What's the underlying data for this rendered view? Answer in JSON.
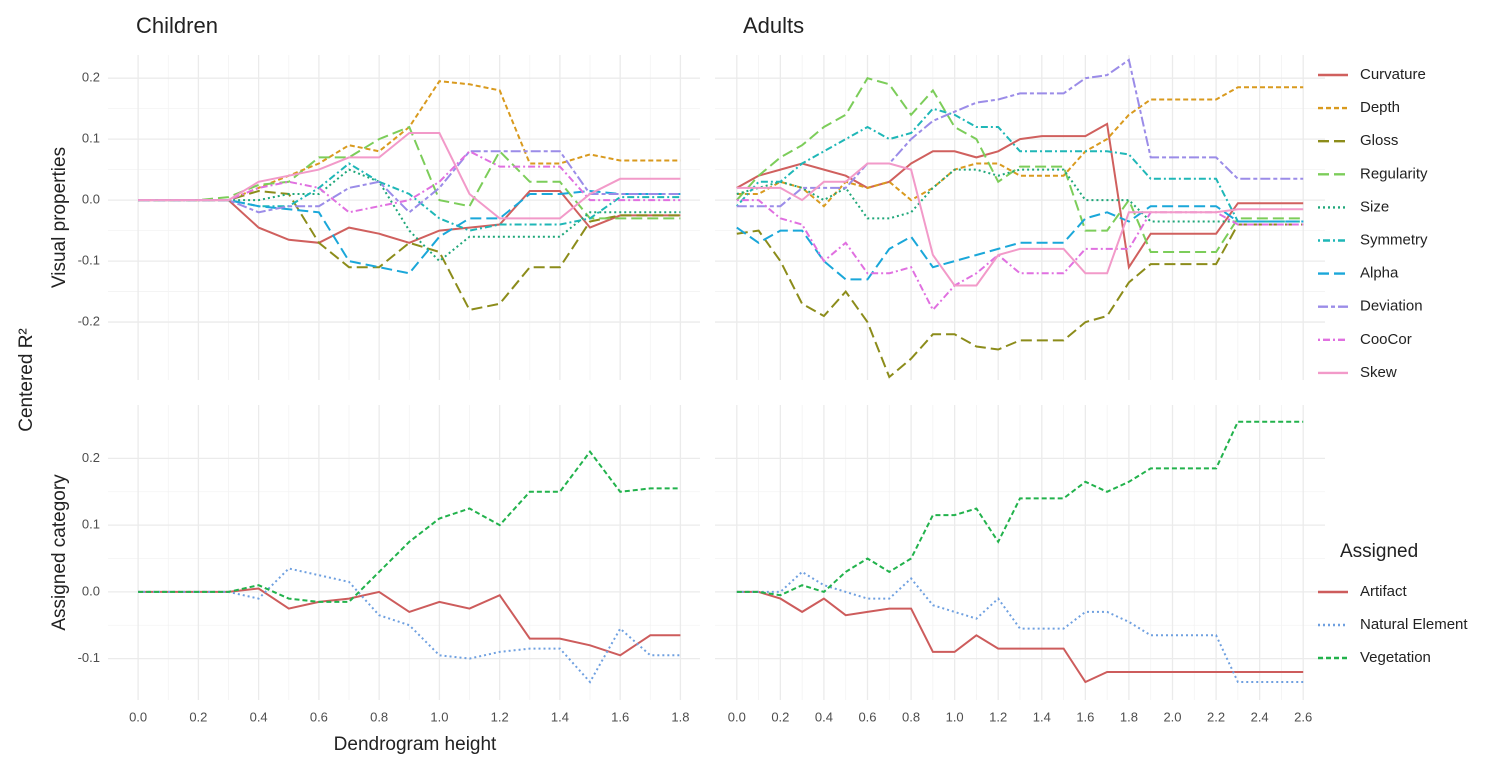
{
  "x_label": "Dendrogram height",
  "y_label": "Centered R²",
  "chart_data": [
    {
      "type": "line",
      "title": "Children",
      "ylabel": "Visual properties",
      "x": [
        0,
        0.1,
        0.2,
        0.3,
        0.4,
        0.5,
        0.6,
        0.7,
        0.8,
        0.9,
        1.0,
        1.1,
        1.2,
        1.3,
        1.4,
        1.5,
        1.6,
        1.7,
        1.8
      ],
      "xlim": [
        -0.1,
        1.865
      ],
      "ylim": [
        -0.295,
        0.238
      ],
      "xticks": [
        0,
        0.2,
        0.4,
        0.6,
        0.8,
        1,
        1.2,
        1.4,
        1.6,
        1.8
      ],
      "yticks": [
        {
          "value": 0.2,
          "label": "0.2"
        },
        {
          "value": 0.1,
          "label": "0.1"
        },
        {
          "value": 0,
          "label": "0.0"
        },
        {
          "value": -0.1,
          "label": "-0.1"
        },
        {
          "value": -0.2,
          "label": "-0.2"
        }
      ],
      "grid": true,
      "series": [
        {
          "color": "#d0605e",
          "linetype": "solid",
          "values": [
            0,
            0,
            0,
            0,
            -0.045,
            -0.065,
            -0.07,
            -0.045,
            -0.055,
            -0.07,
            -0.05,
            -0.045,
            -0.04,
            0.015,
            0.015,
            -0.045,
            -0.025,
            -0.025,
            -0.025
          ]
        },
        {
          "color": "#d99a1e",
          "linetype": "dashed",
          "values": [
            0,
            0,
            0,
            0,
            0.02,
            0.04,
            0.06,
            0.09,
            0.08,
            0.12,
            0.195,
            0.19,
            0.18,
            0.06,
            0.06,
            0.075,
            0.065,
            0.065,
            0.065
          ]
        },
        {
          "color": "#8c8c1a",
          "linetype": "longdash",
          "values": [
            0,
            0,
            0,
            0,
            0.015,
            0.01,
            -0.07,
            -0.11,
            -0.11,
            -0.07,
            -0.085,
            -0.18,
            -0.17,
            -0.11,
            -0.11,
            -0.035,
            -0.025,
            -0.025,
            -0.025
          ]
        },
        {
          "color": "#7ccd5a",
          "linetype": "longdash",
          "values": [
            0,
            0,
            0,
            0.005,
            0.025,
            0.03,
            0.07,
            0.07,
            0.1,
            0.12,
            0,
            -0.01,
            0.08,
            0.03,
            0.03,
            -0.03,
            -0.03,
            -0.03,
            -0.03
          ]
        },
        {
          "color": "#1fa77a",
          "linetype": "dotted",
          "values": [
            0,
            0,
            0,
            0,
            0,
            0.01,
            0.01,
            0.05,
            0.03,
            -0.05,
            -0.1,
            -0.06,
            -0.06,
            -0.06,
            -0.06,
            -0.02,
            -0.02,
            -0.02,
            -0.02
          ]
        },
        {
          "color": "#1fb7b7",
          "linetype": "dotdash",
          "values": [
            0,
            0,
            0,
            0,
            -0.01,
            -0.01,
            0.02,
            0.06,
            0.03,
            0.01,
            -0.03,
            -0.05,
            -0.04,
            -0.04,
            -0.04,
            -0.03,
            0.005,
            0.005,
            0.005
          ]
        },
        {
          "color": "#1aa7d9",
          "linetype": "longdash",
          "values": [
            0,
            0,
            0,
            0,
            -0.01,
            -0.015,
            -0.02,
            -0.1,
            -0.11,
            -0.12,
            -0.06,
            -0.03,
            -0.03,
            0.01,
            0.01,
            0.015,
            0.01,
            0.01,
            0.01
          ]
        },
        {
          "color": "#9b8ce8",
          "linetype": "twodash",
          "values": [
            0,
            0,
            0,
            0,
            -0.02,
            -0.01,
            -0.01,
            0.02,
            0.03,
            -0.02,
            0.02,
            0.08,
            0.08,
            0.08,
            0.08,
            0.01,
            0.01,
            0.01,
            0.01
          ]
        },
        {
          "color": "#e070e0",
          "linetype": "dotdash",
          "values": [
            0,
            0,
            0,
            0,
            0.02,
            0.03,
            0.02,
            -0.02,
            -0.01,
            0,
            0.03,
            0.08,
            0.055,
            0.055,
            0.055,
            0,
            0,
            0,
            0
          ]
        },
        {
          "color": "#f29ac9",
          "linetype": "solid",
          "values": [
            0,
            0,
            0,
            0,
            0.03,
            0.04,
            0.05,
            0.07,
            0.07,
            0.11,
            0.11,
            0.01,
            -0.03,
            -0.03,
            -0.03,
            0.01,
            0.035,
            0.035,
            0.035
          ]
        }
      ]
    },
    {
      "type": "line",
      "title": "Adults",
      "x": [
        0,
        0.1,
        0.2,
        0.3,
        0.4,
        0.5,
        0.6,
        0.7,
        0.8,
        0.9,
        1.0,
        1.1,
        1.2,
        1.3,
        1.4,
        1.5,
        1.6,
        1.7,
        1.8,
        1.9,
        2.0,
        2.1,
        2.2,
        2.3,
        2.4,
        2.5,
        2.6
      ],
      "xlim": [
        -0.1,
        2.7
      ],
      "ylim": [
        -0.295,
        0.238
      ],
      "xticks": [
        0,
        0.2,
        0.4,
        0.6,
        0.8,
        1,
        1.2,
        1.4,
        1.6,
        1.8,
        2,
        2.2,
        2.4,
        2.6
      ],
      "yticks": [
        0.2,
        0.1,
        0,
        -0.1,
        -0.2
      ],
      "grid": true,
      "series": [
        {
          "name": "Curvature",
          "color": "#d0605e",
          "linetype": "solid",
          "values": [
            0.02,
            0.04,
            0.05,
            0.06,
            0.05,
            0.04,
            0.02,
            0.03,
            0.06,
            0.08,
            0.08,
            0.07,
            0.08,
            0.1,
            0.105,
            0.105,
            0.105,
            0.125,
            -0.11,
            -0.055,
            -0.055,
            -0.055,
            -0.055,
            -0.005,
            -0.005,
            -0.005,
            -0.005
          ]
        },
        {
          "name": "Depth",
          "color": "#d99a1e",
          "linetype": "dashed",
          "values": [
            0.01,
            0.01,
            0.03,
            0.02,
            -0.01,
            0.03,
            0.02,
            0.03,
            0,
            0.02,
            0.05,
            0.06,
            0.06,
            0.04,
            0.04,
            0.04,
            0.08,
            0.1,
            0.14,
            0.165,
            0.165,
            0.165,
            0.165,
            0.185,
            0.185,
            0.185,
            0.185
          ]
        },
        {
          "name": "Gloss",
          "color": "#8c8c1a",
          "linetype": "longdash",
          "values": [
            -0.055,
            -0.05,
            -0.1,
            -0.17,
            -0.19,
            -0.15,
            -0.2,
            -0.29,
            -0.26,
            -0.22,
            -0.22,
            -0.24,
            -0.245,
            -0.23,
            -0.23,
            -0.23,
            -0.2,
            -0.19,
            -0.135,
            -0.105,
            -0.105,
            -0.105,
            -0.105,
            -0.04,
            -0.04,
            -0.04,
            -0.04
          ]
        },
        {
          "name": "Regularity",
          "color": "#7ccd5a",
          "linetype": "longdash",
          "values": [
            0,
            0.04,
            0.07,
            0.09,
            0.12,
            0.14,
            0.2,
            0.19,
            0.14,
            0.18,
            0.12,
            0.1,
            0.03,
            0.055,
            0.055,
            0.055,
            -0.05,
            -0.05,
            0,
            -0.085,
            -0.085,
            -0.085,
            -0.085,
            -0.03,
            -0.03,
            -0.03,
            -0.03
          ]
        },
        {
          "name": "Size",
          "color": "#1fa77a",
          "linetype": "dotted",
          "values": [
            0.01,
            0.02,
            0.03,
            0.02,
            0,
            0.02,
            -0.03,
            -0.03,
            -0.02,
            0.02,
            0.05,
            0.05,
            0.04,
            0.05,
            0.05,
            0.05,
            0,
            0,
            0,
            -0.035,
            -0.035,
            -0.035,
            -0.035,
            -0.035,
            -0.035,
            -0.035,
            -0.035
          ]
        },
        {
          "name": "Symmetry",
          "color": "#1fb7b7",
          "linetype": "dotdash",
          "values": [
            -0.01,
            0.03,
            0.03,
            0.06,
            0.08,
            0.1,
            0.12,
            0.1,
            0.11,
            0.15,
            0.14,
            0.12,
            0.12,
            0.08,
            0.08,
            0.08,
            0.08,
            0.08,
            0.075,
            0.035,
            0.035,
            0.035,
            0.035,
            -0.035,
            -0.035,
            -0.035,
            -0.035
          ]
        },
        {
          "name": "Alpha",
          "color": "#1aa7d9",
          "linetype": "longdash",
          "values": [
            -0.045,
            -0.07,
            -0.05,
            -0.05,
            -0.1,
            -0.13,
            -0.13,
            -0.08,
            -0.06,
            -0.11,
            -0.1,
            -0.09,
            -0.08,
            -0.07,
            -0.07,
            -0.07,
            -0.03,
            -0.02,
            -0.035,
            -0.01,
            -0.01,
            -0.01,
            -0.01,
            -0.035,
            -0.035,
            -0.035,
            -0.035
          ]
        },
        {
          "name": "Deviation",
          "color": "#9b8ce8",
          "linetype": "twodash",
          "values": [
            -0.01,
            -0.01,
            -0.01,
            0.02,
            0.02,
            0.02,
            0.06,
            0.06,
            0.1,
            0.13,
            0.145,
            0.16,
            0.165,
            0.175,
            0.175,
            0.175,
            0.2,
            0.205,
            0.23,
            0.07,
            0.07,
            0.07,
            0.07,
            0.035,
            0.035,
            0.035,
            0.035
          ]
        },
        {
          "name": "CooCor",
          "color": "#e070e0",
          "linetype": "dotdash",
          "values": [
            0,
            0,
            -0.03,
            -0.04,
            -0.1,
            -0.07,
            -0.12,
            -0.12,
            -0.11,
            -0.18,
            -0.14,
            -0.12,
            -0.09,
            -0.12,
            -0.12,
            -0.12,
            -0.08,
            -0.08,
            -0.08,
            -0.02,
            -0.02,
            -0.02,
            -0.02,
            -0.04,
            -0.04,
            -0.04,
            -0.04
          ]
        },
        {
          "name": "Skew",
          "color": "#f29ac9",
          "linetype": "solid",
          "values": [
            0.02,
            0.02,
            0.02,
            0,
            0.03,
            0.03,
            0.06,
            0.06,
            0.05,
            -0.09,
            -0.14,
            -0.14,
            -0.09,
            -0.08,
            -0.08,
            -0.08,
            -0.12,
            -0.12,
            -0.02,
            -0.02,
            -0.02,
            -0.02,
            -0.02,
            -0.015,
            -0.015,
            -0.015,
            -0.015
          ]
        }
      ]
    },
    {
      "type": "line",
      "ylabel": "Assigned category",
      "x": [
        0,
        0.1,
        0.2,
        0.3,
        0.4,
        0.5,
        0.6,
        0.7,
        0.8,
        0.9,
        1.0,
        1.1,
        1.2,
        1.3,
        1.4,
        1.5,
        1.6,
        1.7,
        1.8
      ],
      "xlim": [
        -0.1,
        1.865
      ],
      "ylim": [
        -0.162,
        0.28
      ],
      "xticks": [
        {
          "value": 0,
          "label": "0.0"
        },
        {
          "value": 0.2,
          "label": "0.2"
        },
        {
          "value": 0.4,
          "label": "0.4"
        },
        {
          "value": 0.6,
          "label": "0.6"
        },
        {
          "value": 0.8,
          "label": "0.8"
        },
        {
          "value": 1,
          "label": "1.0"
        },
        {
          "value": 1.2,
          "label": "1.2"
        },
        {
          "value": 1.4,
          "label": "1.4"
        },
        {
          "value": 1.6,
          "label": "1.6"
        },
        {
          "value": 1.8,
          "label": "1.8"
        }
      ],
      "yticks": [
        {
          "value": 0.2,
          "label": "0.2"
        },
        {
          "value": 0.1,
          "label": "0.1"
        },
        {
          "value": 0,
          "label": "0.0"
        },
        {
          "value": -0.1,
          "label": "-0.1"
        }
      ],
      "grid": true,
      "series": [
        {
          "color": "#cd5c5c",
          "linetype": "solid",
          "values": [
            0,
            0,
            0,
            0,
            0.005,
            -0.025,
            -0.015,
            -0.01,
            0,
            -0.03,
            -0.015,
            -0.025,
            -0.005,
            -0.07,
            -0.07,
            -0.08,
            -0.095,
            -0.065,
            -0.065
          ]
        },
        {
          "color": "#6fa0e0",
          "linetype": "dotted",
          "values": [
            0,
            0,
            0,
            0,
            -0.01,
            0.035,
            0.025,
            0.015,
            -0.035,
            -0.05,
            -0.095,
            -0.1,
            -0.09,
            -0.085,
            -0.085,
            -0.135,
            -0.055,
            -0.095,
            -0.095
          ]
        },
        {
          "color": "#22b24c",
          "linetype": "dashed",
          "values": [
            0,
            0,
            0,
            0,
            0.01,
            -0.01,
            -0.015,
            -0.015,
            0.03,
            0.075,
            0.11,
            0.125,
            0.1,
            0.15,
            0.15,
            0.21,
            0.15,
            0.155,
            0.155
          ]
        }
      ]
    },
    {
      "type": "line",
      "legend_title": "Assigned",
      "x": [
        0,
        0.1,
        0.2,
        0.3,
        0.4,
        0.5,
        0.6,
        0.7,
        0.8,
        0.9,
        1.0,
        1.1,
        1.2,
        1.3,
        1.4,
        1.5,
        1.6,
        1.7,
        1.8,
        1.9,
        2.0,
        2.1,
        2.2,
        2.3,
        2.4,
        2.5,
        2.6
      ],
      "xlim": [
        -0.1,
        2.7
      ],
      "ylim": [
        -0.162,
        0.28
      ],
      "xticks": [
        {
          "value": 0,
          "label": "0.0"
        },
        {
          "value": 0.2,
          "label": "0.2"
        },
        {
          "value": 0.4,
          "label": "0.4"
        },
        {
          "value": 0.6,
          "label": "0.6"
        },
        {
          "value": 0.8,
          "label": "0.8"
        },
        {
          "value": 1,
          "label": "1.0"
        },
        {
          "value": 1.2,
          "label": "1.2"
        },
        {
          "value": 1.4,
          "label": "1.4"
        },
        {
          "value": 1.6,
          "label": "1.6"
        },
        {
          "value": 1.8,
          "label": "1.8"
        },
        {
          "value": 2,
          "label": "2.0"
        },
        {
          "value": 2.2,
          "label": "2.2"
        },
        {
          "value": 2.4,
          "label": "2.4"
        },
        {
          "value": 2.6,
          "label": "2.6"
        }
      ],
      "yticks": [
        0.2,
        0.1,
        0,
        -0.1
      ],
      "grid": true,
      "series": [
        {
          "name": "Artifact",
          "color": "#cd5c5c",
          "linetype": "solid",
          "values": [
            0,
            0,
            -0.01,
            -0.03,
            -0.01,
            -0.035,
            -0.03,
            -0.025,
            -0.025,
            -0.09,
            -0.09,
            -0.065,
            -0.085,
            -0.085,
            -0.085,
            -0.085,
            -0.135,
            -0.12,
            -0.12,
            -0.12,
            -0.12,
            -0.12,
            -0.12,
            -0.12,
            -0.12,
            -0.12,
            -0.12
          ]
        },
        {
          "name": "Natural Element",
          "color": "#6fa0e0",
          "linetype": "dotted",
          "values": [
            0,
            0,
            0,
            0.03,
            0.01,
            0,
            -0.01,
            -0.01,
            0.02,
            -0.02,
            -0.03,
            -0.04,
            -0.01,
            -0.055,
            -0.055,
            -0.055,
            -0.03,
            -0.03,
            -0.045,
            -0.065,
            -0.065,
            -0.065,
            -0.065,
            -0.135,
            -0.135,
            -0.135,
            -0.135
          ]
        },
        {
          "name": "Vegetation",
          "color": "#22b24c",
          "linetype": "dashed",
          "values": [
            0,
            0,
            -0.005,
            0.01,
            0,
            0.03,
            0.05,
            0.03,
            0.05,
            0.115,
            0.115,
            0.125,
            0.075,
            0.14,
            0.14,
            0.14,
            0.165,
            0.15,
            0.165,
            0.185,
            0.185,
            0.185,
            0.185,
            0.255,
            0.255,
            0.255,
            0.255
          ]
        }
      ]
    }
  ]
}
